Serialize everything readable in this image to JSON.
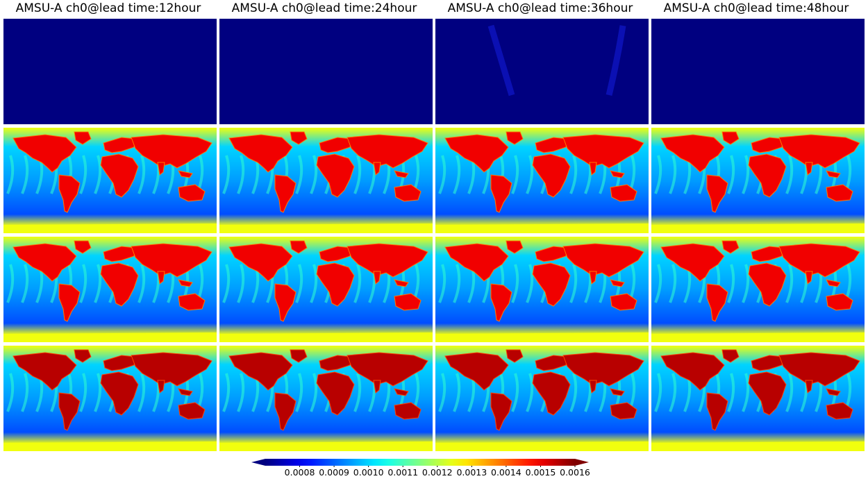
{
  "figure": {
    "titles": [
      "AMSU-A ch0@lead time:12hour",
      "AMSU-A ch0@lead time:24hour",
      "AMSU-A ch0@lead time:36hour",
      "AMSU-A ch0@lead time:48hour"
    ]
  },
  "chart_data": {
    "type": "heatmap",
    "rows": 4,
    "columns": 4,
    "column_titles": [
      "AMSU-A ch0@lead time:12hour",
      "AMSU-A ch0@lead time:24hour",
      "AMSU-A ch0@lead time:36hour",
      "AMSU-A ch0@lead time:48hour"
    ],
    "colormap": "jet",
    "colorbar": {
      "orientation": "horizontal",
      "extend": "both",
      "vmin": 0.0007,
      "vmax": 0.0016,
      "ticks": [
        "0.0008",
        "0.0009",
        "0.0010",
        "0.0011",
        "0.0012",
        "0.0013",
        "0.0014",
        "0.0015",
        "0.0016"
      ]
    },
    "row_fields": [
      {
        "description": "uniform low field",
        "approx_value": 0.0007
      },
      {
        "description": "global map field",
        "land_value": 0.0015,
        "ocean_value": 0.001,
        "polar_value": 0.00125
      },
      {
        "description": "global map field",
        "land_value": 0.0015,
        "ocean_value": 0.001,
        "polar_value": 0.00125
      },
      {
        "description": "global map field",
        "land_value": 0.00155,
        "ocean_value": 0.001,
        "polar_value": 0.00125
      }
    ]
  }
}
